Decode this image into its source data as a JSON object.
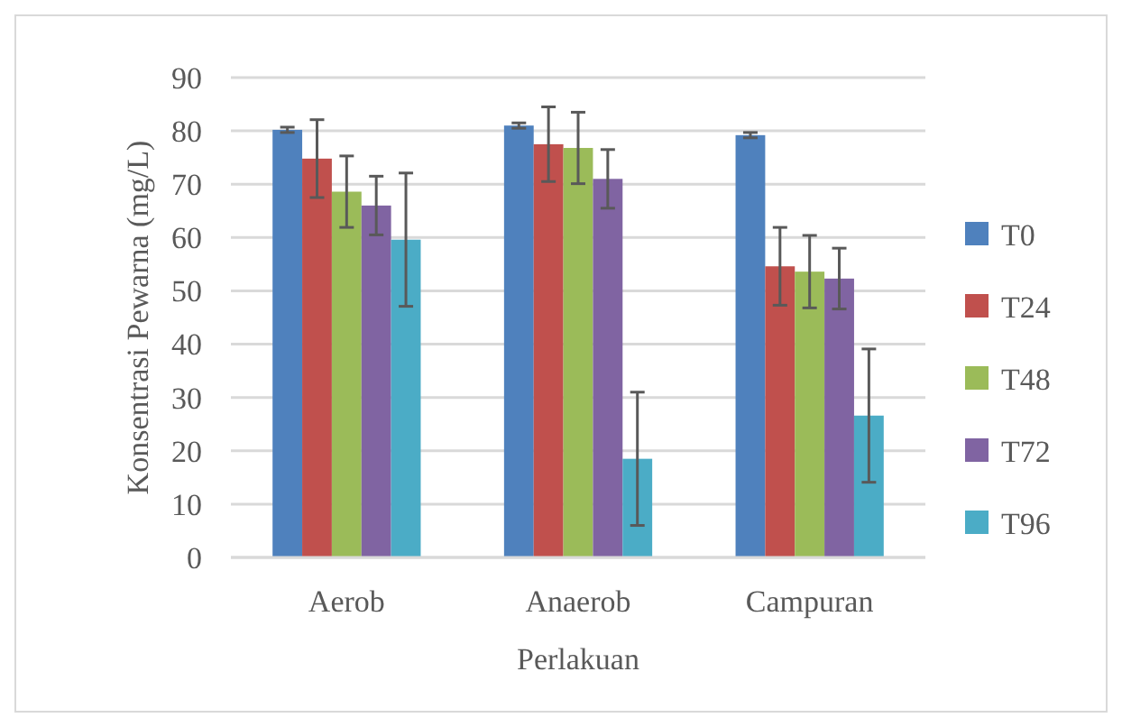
{
  "chart_data": {
    "type": "bar",
    "xlabel": "Perlakuan",
    "ylabel": "Konsentrasi Pewarna (mg/L)",
    "categories": [
      "Aerob",
      "Anaerob",
      "Campuran"
    ],
    "series": [
      {
        "name": "T0",
        "color": "#4f81bd",
        "values": [
          80.2,
          81,
          79.2
        ],
        "errors": [
          0.5,
          0.5,
          0.5
        ]
      },
      {
        "name": "T24",
        "color": "#c0504d",
        "values": [
          74.8,
          77.5,
          54.6
        ],
        "errors": [
          7.3,
          7,
          7.3
        ]
      },
      {
        "name": "T48",
        "color": "#9bbb59",
        "values": [
          68.6,
          76.8,
          53.6
        ],
        "errors": [
          6.7,
          6.7,
          6.8
        ]
      },
      {
        "name": "T72",
        "color": "#8064a2",
        "values": [
          66,
          71,
          52.3
        ],
        "errors": [
          5.5,
          5.5,
          5.7
        ]
      },
      {
        "name": "T96",
        "color": "#4bacc6",
        "values": [
          59.6,
          18.5,
          26.6
        ],
        "errors": [
          12.5,
          12.5,
          12.5
        ]
      }
    ],
    "ylim": [
      0,
      90
    ],
    "yticks": [
      0,
      10,
      20,
      30,
      40,
      50,
      60,
      70,
      80,
      90
    ],
    "grid": "y",
    "legend": "right"
  }
}
